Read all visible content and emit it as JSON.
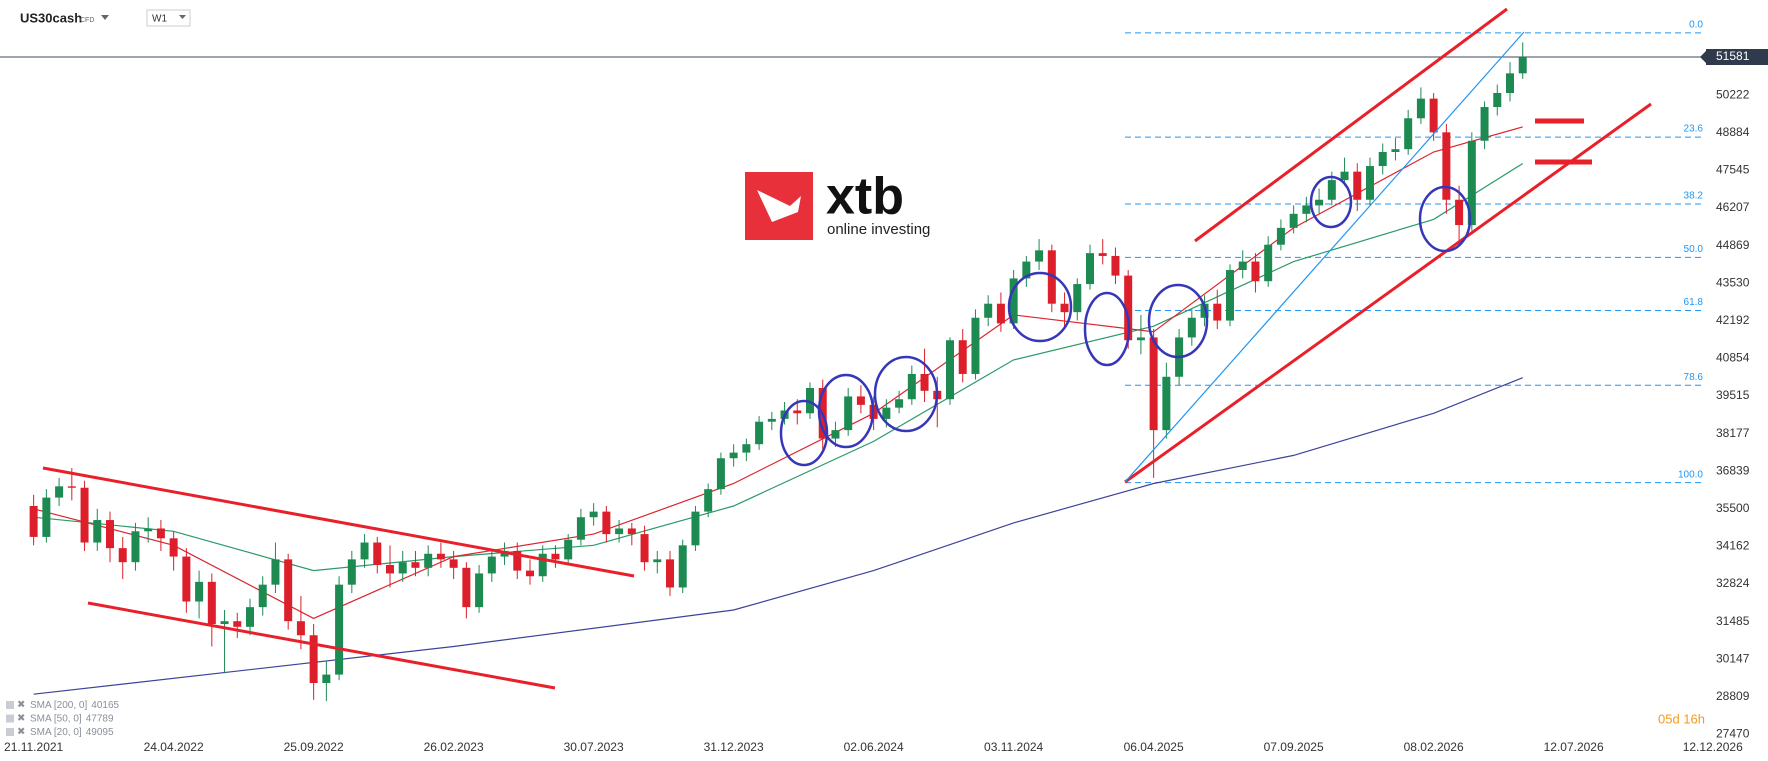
{
  "header": {
    "symbol": "US30cash",
    "instrument_type": "CFD",
    "timeframe": "W1"
  },
  "logo": {
    "brand": "xtb",
    "tagline": "online investing"
  },
  "timer": "05d 16h",
  "chart_data": {
    "type": "candlestick",
    "x": [
      "21.11.2021",
      "05.12.2021",
      "19.12.2021",
      "02.01.2022",
      "16.01.2022",
      "30.01.2022",
      "13.02.2022",
      "27.02.2022",
      "13.03.2022",
      "27.03.2022",
      "10.04.2022",
      "24.04.2022",
      "08.05.2022",
      "22.05.2022",
      "05.06.2022",
      "19.06.2022",
      "03.07.2022",
      "17.07.2022",
      "31.07.2022",
      "14.08.2022",
      "28.08.2022",
      "11.09.2022",
      "25.09.2022",
      "09.10.2022",
      "23.10.2022",
      "06.11.2022",
      "20.11.2022",
      "04.12.2022",
      "18.12.2022",
      "01.01.2023",
      "15.01.2023",
      "29.01.2023",
      "12.02.2023",
      "26.02.2023",
      "12.03.2023",
      "26.03.2023",
      "09.04.2023",
      "23.04.2023",
      "07.05.2023",
      "21.05.2023",
      "04.06.2023",
      "18.06.2023",
      "02.07.2023",
      "16.07.2023",
      "30.07.2023",
      "13.08.2023",
      "27.08.2023",
      "10.09.2023",
      "24.09.2023",
      "08.10.2023",
      "22.10.2023",
      "05.11.2023",
      "19.11.2023",
      "03.12.2023",
      "17.12.2023",
      "31.12.2023",
      "14.01.2024",
      "28.01.2024",
      "11.02.2024",
      "25.02.2024",
      "10.03.2024",
      "24.03.2024",
      "07.04.2024",
      "21.04.2024",
      "05.05.2024",
      "19.05.2024",
      "02.06.2024",
      "16.06.2024",
      "30.06.2024",
      "14.07.2024",
      "28.07.2024",
      "11.08.2024",
      "25.08.2024",
      "08.09.2024",
      "22.09.2024",
      "06.10.2024",
      "20.10.2024",
      "03.11.2024",
      "17.11.2024",
      "01.12.2024",
      "15.12.2024",
      "29.12.2024",
      "12.01.2025",
      "26.01.2025",
      "09.02.2025",
      "23.02.2025",
      "09.03.2025",
      "23.03.2025",
      "06.04.2025",
      "20.04.2025",
      "04.05.2025",
      "18.05.2025",
      "01.06.2025",
      "15.06.2025",
      "29.06.2025",
      "13.07.2025",
      "27.07.2025",
      "10.08.2025",
      "24.08.2025",
      "07.09.2025",
      "21.09.2025",
      "05.10.2025",
      "19.10.2025",
      "02.11.2025",
      "16.11.2025",
      "30.11.2025",
      "14.12.2025",
      "28.12.2025",
      "11.01.2026",
      "25.01.2026",
      "08.02.2026",
      "22.02.2026",
      "08.03.2026",
      "22.03.2026",
      "05.04.2026",
      "19.04.2026",
      "03.05.2026",
      "17.05.2026"
    ],
    "open": [
      35600,
      34500,
      35900,
      36300,
      36250,
      34300,
      35100,
      34100,
      33600,
      34700,
      34800,
      34450,
      33800,
      32200,
      32900,
      31400,
      31500,
      31300,
      32000,
      32800,
      33700,
      31500,
      31000,
      29300,
      29600,
      32800,
      33700,
      34300,
      33500,
      33200,
      33600,
      33400,
      33900,
      33700,
      33400,
      32000,
      33200,
      33800,
      34000,
      33300,
      33100,
      33900,
      33700,
      34400,
      35200,
      35400,
      34600,
      34800,
      34600,
      33600,
      33700,
      32700,
      34200,
      35400,
      36200,
      37300,
      37500,
      37800,
      38600,
      38700,
      39000,
      38900,
      39800,
      38000,
      38300,
      39500,
      39200,
      38700,
      39100,
      39400,
      40300,
      39700,
      39400,
      41500,
      40300,
      42300,
      42800,
      42100,
      43700,
      44300,
      44700,
      42800,
      42500,
      43500,
      44600,
      44500,
      43800,
      41500,
      41600,
      38300,
      40200,
      41600,
      42300,
      42800,
      42200,
      44000,
      44300,
      43600,
      44900,
      45500,
      46000,
      46300,
      46500,
      47200,
      47500,
      46500,
      47700,
      48200,
      48300,
      49400,
      50100,
      48900,
      46500,
      45600,
      48600,
      49800,
      50300,
      51000
    ],
    "high": [
      36000,
      36200,
      36600,
      36950,
      36500,
      35500,
      35400,
      34500,
      35000,
      35200,
      35100,
      34700,
      34100,
      33300,
      33200,
      31900,
      31800,
      32300,
      33100,
      34300,
      33900,
      32400,
      31400,
      30100,
      33100,
      34000,
      34600,
      34500,
      34200,
      34000,
      34000,
      34200,
      34300,
      34000,
      33600,
      33500,
      34000,
      34300,
      34300,
      33700,
      34200,
      34200,
      34600,
      35500,
      35700,
      35600,
      35100,
      35000,
      34900,
      34000,
      34000,
      34400,
      35600,
      36400,
      37500,
      37800,
      38000,
      38800,
      38950,
      39300,
      39400,
      40000,
      40100,
      38600,
      39800,
      39900,
      39500,
      39400,
      39700,
      40600,
      41200,
      40200,
      41600,
      41900,
      42600,
      43100,
      43200,
      44000,
      44500,
      45100,
      44900,
      43200,
      43700,
      44900,
      45100,
      44800,
      44000,
      42400,
      41900,
      40700,
      41900,
      42600,
      43100,
      43300,
      44200,
      44700,
      44600,
      45200,
      45800,
      46300,
      46600,
      46900,
      47500,
      48000,
      47800,
      48000,
      48500,
      48700,
      49700,
      50500,
      50300,
      49200,
      47000,
      48900,
      50000,
      50600,
      51400,
      52100
    ],
    "low": [
      34200,
      34300,
      35600,
      35800,
      34000,
      34000,
      33600,
      33000,
      33300,
      34300,
      34000,
      33300,
      31800,
      31600,
      30600,
      29650,
      30900,
      31000,
      31700,
      32500,
      31200,
      30500,
      28700,
      28660,
      29400,
      32500,
      33400,
      33200,
      32700,
      32900,
      33100,
      33100,
      33400,
      33000,
      31600,
      31800,
      32900,
      33500,
      33000,
      32800,
      32900,
      33400,
      33500,
      34200,
      34900,
      34300,
      34300,
      34200,
      33300,
      33200,
      32400,
      32500,
      34000,
      35200,
      36000,
      37000,
      37200,
      37600,
      38300,
      38500,
      38500,
      38700,
      37600,
      37700,
      38100,
      38900,
      38300,
      38400,
      38900,
      39200,
      39300,
      38400,
      39200,
      40000,
      40100,
      42000,
      41800,
      41900,
      43400,
      44000,
      42500,
      41900,
      42200,
      43300,
      44200,
      43500,
      41200,
      41000,
      36600,
      38000,
      39900,
      41300,
      42000,
      41900,
      42000,
      43700,
      43200,
      43400,
      44700,
      45300,
      45700,
      46000,
      46300,
      47000,
      46100,
      46300,
      47400,
      47900,
      48100,
      49200,
      48600,
      46000,
      45000,
      45400,
      48300,
      49500,
      50000,
      50800
    ],
    "close": [
      34500,
      35900,
      36300,
      36250,
      34300,
      35100,
      34100,
      33600,
      34700,
      34800,
      34450,
      33800,
      32200,
      32900,
      31400,
      31500,
      31300,
      32000,
      32800,
      33700,
      31500,
      31000,
      29300,
      29600,
      32800,
      33700,
      34300,
      33500,
      33200,
      33600,
      33400,
      33900,
      33700,
      33400,
      32000,
      33200,
      33800,
      34000,
      33300,
      33100,
      33900,
      33700,
      34400,
      35200,
      35400,
      34600,
      34800,
      34600,
      33600,
      33700,
      32700,
      34200,
      35400,
      36200,
      37300,
      37500,
      37800,
      38600,
      38700,
      39000,
      38900,
      39800,
      38000,
      38300,
      39500,
      39200,
      38700,
      39100,
      39400,
      40300,
      39700,
      39400,
      41500,
      40300,
      42300,
      42800,
      42100,
      43700,
      44300,
      44700,
      42800,
      42500,
      43500,
      44600,
      44500,
      43800,
      41500,
      41600,
      38300,
      40200,
      41600,
      42300,
      42800,
      42200,
      44000,
      44300,
      43600,
      44900,
      45500,
      46000,
      46300,
      46500,
      47200,
      47500,
      46500,
      47700,
      48200,
      48300,
      49400,
      50100,
      48900,
      46500,
      45600,
      48600,
      49800,
      50300,
      51000,
      51581
    ],
    "up_color": "#1d8a52",
    "down_color": "#dc1f2a",
    "series": [
      {
        "name": "SMA [200, 0]",
        "color": "#3d4399",
        "x": [
          "21.11.2021",
          "26.02.2023",
          "31.12.2023",
          "02.06.2024",
          "03.11.2024",
          "06.04.2025",
          "07.09.2025",
          "08.02.2026",
          "17.05.2026"
        ],
        "values": [
          28900,
          30600,
          31900,
          33300,
          35000,
          36400,
          37400,
          38900,
          40165
        ]
      },
      {
        "name": "SMA [50, 0]",
        "color": "#2a9a68",
        "x": [
          "21.11.2021",
          "24.04.2022",
          "25.09.2022",
          "26.02.2023",
          "30.07.2023",
          "31.12.2023",
          "02.06.2024",
          "03.11.2024",
          "06.04.2025",
          "07.09.2025",
          "08.02.2026",
          "17.05.2026"
        ],
        "values": [
          35200,
          34700,
          33300,
          33800,
          34200,
          35600,
          37900,
          40800,
          42000,
          44300,
          45800,
          47789
        ]
      },
      {
        "name": "SMA [20, 0]",
        "color": "#d9262e",
        "x": [
          "21.11.2021",
          "24.04.2022",
          "25.09.2022",
          "26.02.2023",
          "30.07.2023",
          "31.12.2023",
          "02.06.2024",
          "03.11.2024",
          "06.04.2025",
          "07.09.2025",
          "08.02.2026",
          "17.05.2026"
        ],
        "values": [
          35500,
          34200,
          31600,
          33800,
          34600,
          36400,
          38900,
          42400,
          41800,
          45500,
          48200,
          49095
        ]
      }
    ],
    "fibonacci": {
      "color": "#2196f3",
      "levels": [
        {
          "label": "0.0",
          "price": 52440
        },
        {
          "label": "23.6",
          "price": 48730
        },
        {
          "label": "38.2",
          "price": 46350
        },
        {
          "label": "50.0",
          "price": 44450
        },
        {
          "label": "61.8",
          "price": 42560
        },
        {
          "label": "78.6",
          "price": 39900
        },
        {
          "label": "100.0",
          "price": 36430
        }
      ]
    },
    "xlim": [
      "15.10.2021",
      "20.12.2026"
    ],
    "ylim": [
      27200,
      53610
    ],
    "xticks": [
      "21.11.2021",
      "24.04.2022",
      "25.09.2022",
      "26.02.2023",
      "30.07.2023",
      "31.12.2023",
      "02.06.2024",
      "03.11.2024",
      "06.04.2025",
      "07.09.2025",
      "08.02.2026",
      "12.07.2026",
      "12.12.2026"
    ],
    "yticks": [
      27470,
      28809,
      30147,
      31485,
      32824,
      34162,
      35500,
      36839,
      38177,
      39515,
      40854,
      42192,
      43530,
      44869,
      46207,
      47545,
      48884,
      50222
    ]
  }
}
